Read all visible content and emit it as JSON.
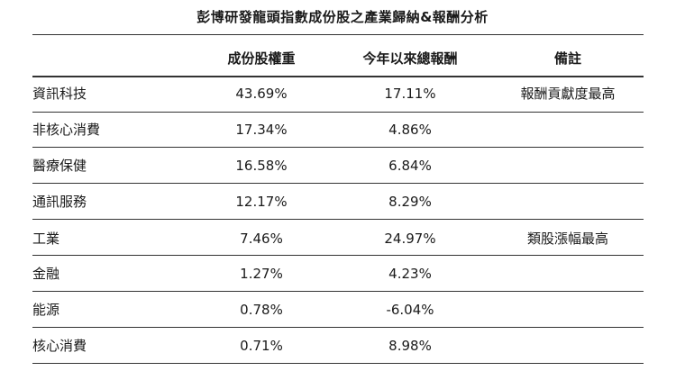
{
  "title": "彭博研發龍頭指數成份股之產業歸納&報酬分析",
  "headers": {
    "weight": "成份股權重",
    "return": "今年以來總報酬",
    "note": "備註"
  },
  "rows": [
    {
      "sector": "資訊科技",
      "weight": "43.69%",
      "return": "17.11%",
      "note": "報酬貢獻度最高"
    },
    {
      "sector": "非核心消費",
      "weight": "17.34%",
      "return": "4.86%",
      "note": ""
    },
    {
      "sector": "醫療保健",
      "weight": "16.58%",
      "return": "6.84%",
      "note": ""
    },
    {
      "sector": "通訊服務",
      "weight": "12.17%",
      "return": "8.29%",
      "note": ""
    },
    {
      "sector": "工業",
      "weight": "7.46%",
      "return": "24.97%",
      "note": "類股漲幅最高"
    },
    {
      "sector": "金融",
      "weight": "1.27%",
      "return": "4.23%",
      "note": ""
    },
    {
      "sector": "能源",
      "weight": "0.78%",
      "return": "-6.04%",
      "note": ""
    },
    {
      "sector": "核心消費",
      "weight": "0.71%",
      "return": "8.98%",
      "note": ""
    }
  ]
}
